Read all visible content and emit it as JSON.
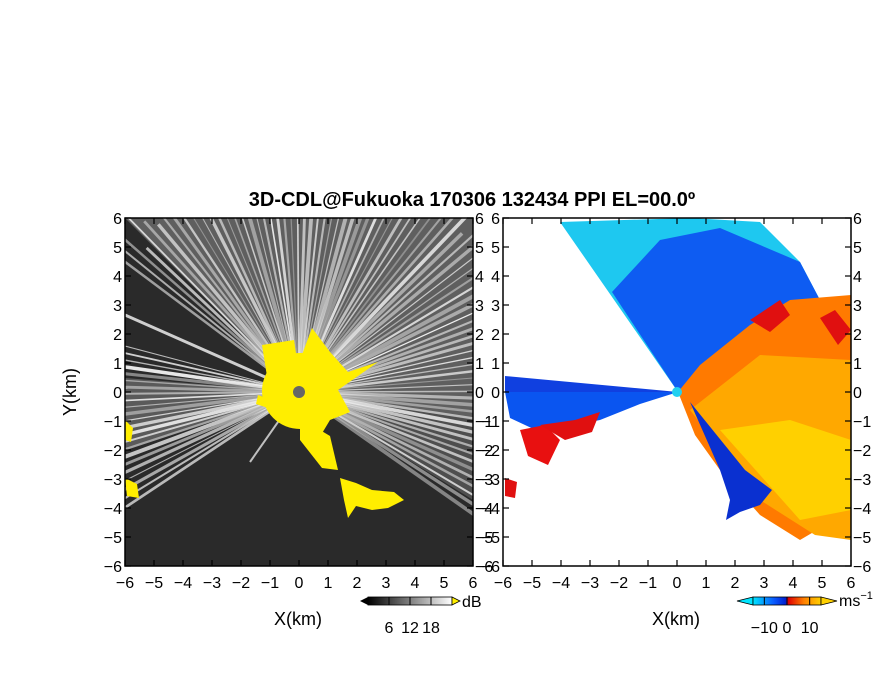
{
  "title": "3D-CDL@Fukuoka 170306 132434 PPI EL=00.0º",
  "chart_data": [
    {
      "type": "heatmap",
      "xlabel": "X(km)",
      "ylabel": "Y(km)",
      "xlim": [
        -6,
        6
      ],
      "ylim": [
        -6,
        6
      ],
      "x_ticks": [
        "−6",
        "−5",
        "−4",
        "−3",
        "−2",
        "−1",
        "0",
        "1",
        "2",
        "3",
        "4",
        "5",
        "6"
      ],
      "y_ticks": [
        "6",
        "5",
        "4",
        "3",
        "2",
        "1",
        "0",
        "−1",
        "−2",
        "−3",
        "−4",
        "−5",
        "−6"
      ],
      "colorbar": {
        "unit": "dB",
        "tick_labels": [
          "6",
          "12",
          "18"
        ],
        "ticks": [
          6,
          12,
          18
        ],
        "range": [
          0,
          24
        ],
        "colormap": [
          "#000000",
          "#ffffff"
        ],
        "flag_color": "#ffff00"
      }
    },
    {
      "type": "heatmap",
      "xlabel": "X(km)",
      "xlim": [
        -6,
        6
      ],
      "ylim": [
        -6,
        6
      ],
      "x_ticks": [
        "−6",
        "−5",
        "−4",
        "−3",
        "−2",
        "−1",
        "0",
        "1",
        "2",
        "3",
        "4",
        "5",
        "6"
      ],
      "y_ticks": [
        "6",
        "5",
        "4",
        "3",
        "2",
        "1",
        "0",
        "−1",
        "−2",
        "−3",
        "−4",
        "−5",
        "−6"
      ],
      "colorbar": {
        "unit": "ms",
        "unit_sup": "−1",
        "tick_labels": [
          "−10",
          "0",
          "10"
        ],
        "ticks": [
          -10,
          0,
          10
        ],
        "range": [
          -15,
          15
        ],
        "colormap": [
          "#00ffff",
          "#0044ff",
          "#ff0000",
          "#ff8800",
          "#ffff00"
        ]
      }
    }
  ]
}
